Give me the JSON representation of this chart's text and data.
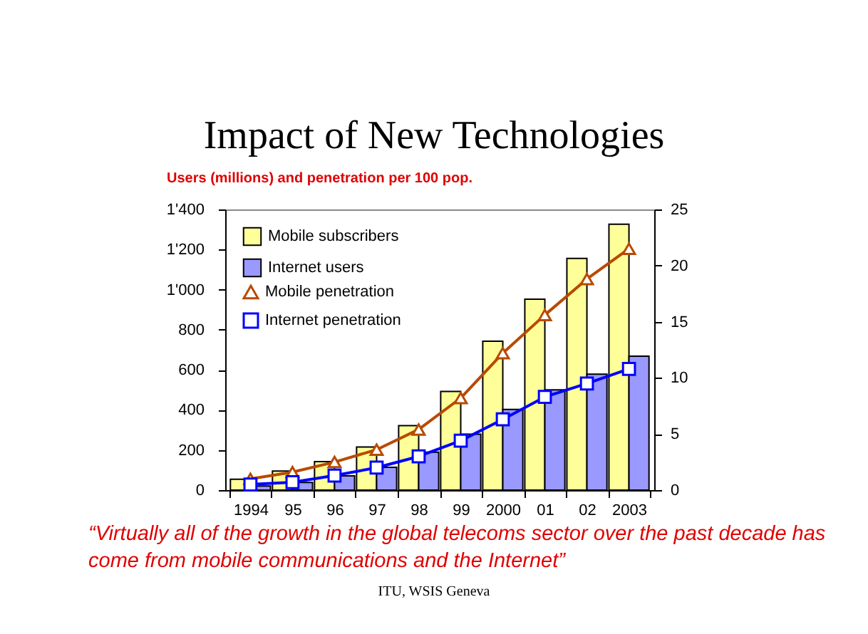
{
  "chart_data": {
    "type": "bar",
    "title": "Impact of New Technologies",
    "subtitle": "Users (millions) and penetration per 100 pop.",
    "categories": [
      "1994",
      "95",
      "96",
      "97",
      "98",
      "99",
      "2000",
      "01",
      "02",
      "2003"
    ],
    "series": [
      {
        "name": "Mobile subscribers",
        "color": "#ffff99",
        "values": [
          54,
          95,
          142,
          215,
          322,
          492,
          743,
          952,
          1156,
          1326
        ]
      },
      {
        "name": "Internet users",
        "color": "#9999ff",
        "values": [
          20,
          38,
          71,
          114,
          189,
          279,
          402,
          500,
          578,
          668
        ]
      },
      {
        "name": "Mobile penetration",
        "type": "line",
        "axis": "y2",
        "marker": "triangle",
        "color": "#b84a00",
        "values": [
          1.0,
          1.6,
          2.5,
          3.6,
          5.4,
          8.2,
          12.2,
          15.6,
          18.8,
          21.5
        ]
      },
      {
        "name": "Internet penetration",
        "type": "line",
        "axis": "y2",
        "marker": "square",
        "color": "#0000ff",
        "values": [
          0.5,
          0.7,
          1.3,
          2.0,
          3.0,
          4.4,
          6.3,
          8.3,
          9.5,
          10.8
        ]
      }
    ],
    "ylim": [
      0,
      1400
    ],
    "yticks": [
      0,
      200,
      400,
      600,
      800,
      {
        "value": 1000,
        "label": "1'000"
      },
      {
        "value": 1200,
        "label": "1'200"
      },
      {
        "value": 1400,
        "label": "1'400"
      }
    ],
    "y2lim": [
      0,
      25
    ],
    "y2ticks": [
      0,
      5,
      10,
      15,
      20,
      25
    ],
    "grid": false,
    "legend": "top left",
    "line_style": "solid",
    "annotations": [
      "“Virtually all of the growth in the global telecoms sector over the past decade has come from mobile communications and the Internet”",
      "ITU, WSIS Geneva"
    ]
  }
}
